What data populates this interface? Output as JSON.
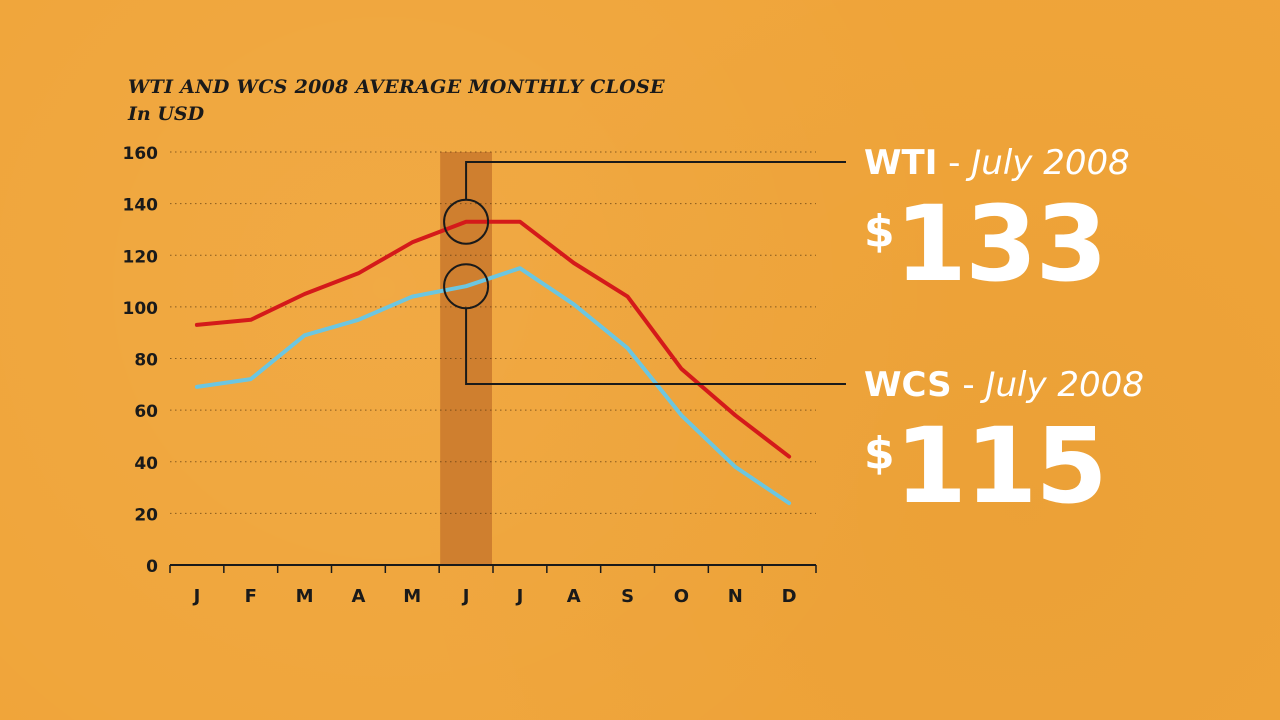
{
  "chart_data": {
    "type": "line",
    "title": "WTI AND WCS 2008 AVERAGE MONTHLY CLOSE",
    "subtitle": "In USD",
    "categories": [
      "J",
      "F",
      "M",
      "A",
      "M",
      "J",
      "J",
      "A",
      "S",
      "O",
      "N",
      "D"
    ],
    "ylim": [
      0,
      160
    ],
    "yticks": [
      0,
      20,
      40,
      60,
      80,
      100,
      120,
      140,
      160
    ],
    "grid": true,
    "series": [
      {
        "name": "WTI",
        "color": "#d41a1a",
        "values": [
          93,
          95,
          105,
          113,
          125,
          133,
          133,
          117,
          104,
          76,
          58,
          42
        ]
      },
      {
        "name": "WCS",
        "color": "#6cc6e0",
        "values": [
          69,
          72,
          89,
          95,
          104,
          108,
          115,
          101,
          84,
          58,
          38,
          24
        ]
      }
    ],
    "highlight_category_index": 5
  },
  "callouts": [
    {
      "series": "WTI",
      "sep": " - ",
      "date": "July 2008",
      "currency": "$",
      "value": "133"
    },
    {
      "series": "WCS",
      "sep": " - ",
      "date": "July 2008",
      "currency": "$",
      "value": "115"
    }
  ],
  "colors": {
    "background": "#f0a53a",
    "highlight_band": "#cf7f2f",
    "axis": "#1a1a1a",
    "text": "#1a1a1a",
    "callout_text": "#ffffff"
  }
}
